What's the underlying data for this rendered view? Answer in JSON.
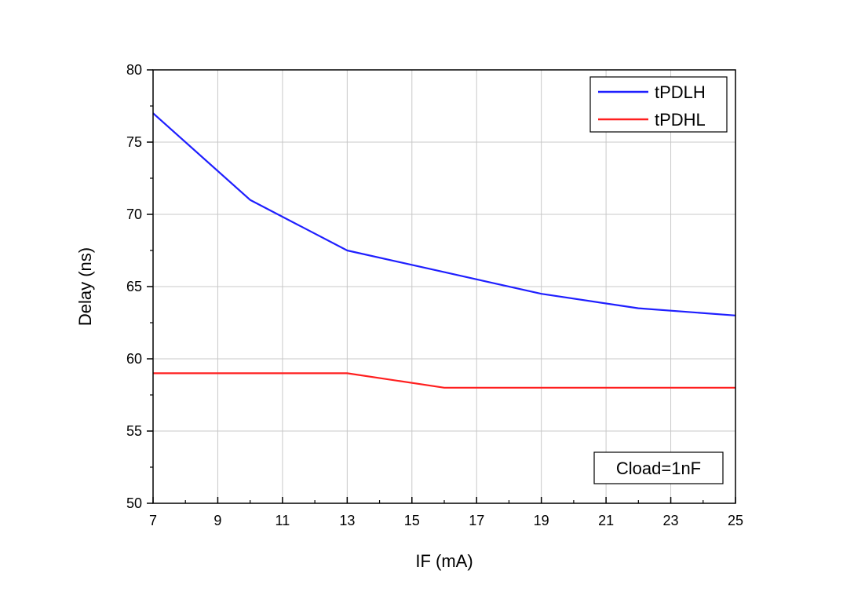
{
  "chart_data": {
    "type": "line",
    "title": "",
    "xlabel": "IF (mA)",
    "ylabel": "Delay (ns)",
    "xlim": [
      7,
      25
    ],
    "ylim": [
      50,
      80
    ],
    "xticks": [
      7,
      9,
      11,
      13,
      15,
      17,
      19,
      21,
      23,
      25
    ],
    "yticks": [
      50,
      55,
      60,
      65,
      70,
      75,
      80
    ],
    "grid": true,
    "legend_position": "top-right",
    "annotation": "Cload=1nF",
    "series": [
      {
        "name": "tPDLH",
        "color": "#1f1fff",
        "x": [
          7,
          10,
          13,
          16,
          19,
          22,
          25
        ],
        "y": [
          77,
          71,
          67.5,
          66,
          64.5,
          63.5,
          63
        ]
      },
      {
        "name": "tPDHL",
        "color": "#ff1f1f",
        "x": [
          7,
          10,
          13,
          16,
          19,
          22,
          25
        ],
        "y": [
          59,
          59,
          59,
          58,
          58,
          58,
          58
        ]
      }
    ]
  }
}
